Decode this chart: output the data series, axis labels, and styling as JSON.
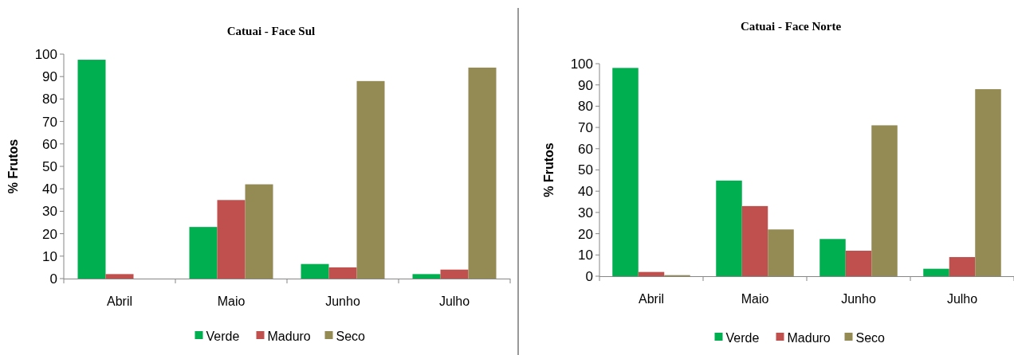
{
  "chart_data": [
    {
      "type": "bar",
      "title": "Catuai - Face Sul",
      "ylabel": "% Frutos",
      "categories": [
        "Abril",
        "Maio",
        "Junho",
        "Julho"
      ],
      "ylim": [
        0,
        100
      ],
      "yticks": [
        0,
        10,
        20,
        30,
        40,
        50,
        60,
        70,
        80,
        90,
        100
      ],
      "grid": false,
      "legend": "bottom",
      "series": [
        {
          "name": "Verde",
          "color": "#00b050",
          "values": [
            97.5,
            23,
            6.5,
            2
          ]
        },
        {
          "name": "Maduro",
          "color": "#c0504d",
          "values": [
            2,
            35,
            5,
            4
          ]
        },
        {
          "name": "Seco",
          "color": "#948a54",
          "values": [
            0,
            42,
            88,
            94
          ]
        }
      ]
    },
    {
      "type": "bar",
      "title": "Catuai - Face Norte",
      "ylabel": "% Frutos",
      "categories": [
        "Abril",
        "Maio",
        "Junho",
        "Julho"
      ],
      "ylim": [
        0,
        100
      ],
      "yticks": [
        0,
        10,
        20,
        30,
        40,
        50,
        60,
        70,
        80,
        90,
        100
      ],
      "grid": false,
      "legend": "bottom",
      "series": [
        {
          "name": "Verde",
          "color": "#00b050",
          "values": [
            98,
            45,
            17.5,
            3.5
          ]
        },
        {
          "name": "Maduro",
          "color": "#c0504d",
          "values": [
            2,
            33,
            12,
            9
          ]
        },
        {
          "name": "Seco",
          "color": "#948a54",
          "values": [
            0.5,
            22,
            71,
            88
          ]
        }
      ]
    }
  ]
}
